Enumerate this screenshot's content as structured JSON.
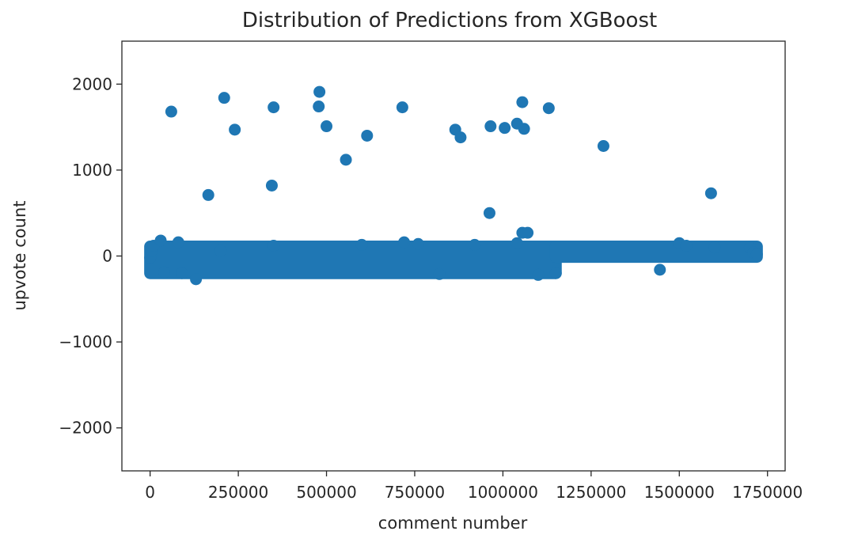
{
  "chart_data": {
    "type": "scatter",
    "title": "Distribution of Predictions from XGBoost",
    "xlabel": "comment number",
    "ylabel": "upvote count",
    "xlim": [
      -80000,
      1800000
    ],
    "ylim": [
      -2500,
      2500
    ],
    "xticks": [
      0,
      250000,
      500000,
      750000,
      1000000,
      1250000,
      1500000,
      1750000
    ],
    "xtick_labels": [
      "0",
      "250000",
      "500000",
      "750000",
      "1000000",
      "1250000",
      "1500000",
      "1750000"
    ],
    "yticks": [
      -2000,
      -1000,
      0,
      1000,
      2000
    ],
    "ytick_labels": [
      "−2000",
      "−1000",
      "0",
      "1000",
      "2000"
    ],
    "grid": false,
    "marker_color": "#1f77b4",
    "band_dense": [
      {
        "x_start": 0,
        "x_end": 1150000,
        "y_low": -200,
        "y_high": 110
      },
      {
        "x_start": 1150000,
        "x_end": 1720000,
        "y_low": -10,
        "y_high": 110
      }
    ],
    "series": [
      {
        "name": "",
        "points": [
          [
            60000,
            1680
          ],
          [
            210000,
            1840
          ],
          [
            240000,
            1470
          ],
          [
            165000,
            710
          ],
          [
            350000,
            1730
          ],
          [
            345000,
            820
          ],
          [
            480000,
            1910
          ],
          [
            478000,
            1740
          ],
          [
            500000,
            1510
          ],
          [
            555000,
            1120
          ],
          [
            615000,
            1400
          ],
          [
            715000,
            1730
          ],
          [
            865000,
            1470
          ],
          [
            880000,
            1380
          ],
          [
            965000,
            1510
          ],
          [
            1005000,
            1490
          ],
          [
            962000,
            500
          ],
          [
            1040000,
            1540
          ],
          [
            1055000,
            1790
          ],
          [
            1060000,
            1480
          ],
          [
            1130000,
            1720
          ],
          [
            1285000,
            1280
          ],
          [
            1590000,
            730
          ],
          [
            1055000,
            270
          ],
          [
            1070000,
            270
          ],
          [
            130000,
            -270
          ],
          [
            1445000,
            -160
          ],
          [
            1150000,
            -200
          ],
          [
            0,
            -20
          ],
          [
            5000,
            60
          ],
          [
            10000,
            120
          ],
          [
            30000,
            180
          ],
          [
            40000,
            -190
          ],
          [
            80000,
            160
          ],
          [
            90000,
            -200
          ],
          [
            200000,
            60
          ],
          [
            350000,
            120
          ],
          [
            600000,
            130
          ],
          [
            720000,
            160
          ],
          [
            760000,
            140
          ],
          [
            820000,
            -210
          ],
          [
            920000,
            130
          ],
          [
            1040000,
            150
          ],
          [
            1100000,
            -220
          ],
          [
            1500000,
            150
          ],
          [
            1520000,
            120
          ],
          [
            1600000,
            100
          ],
          [
            1700000,
            100
          ],
          [
            1710000,
            40
          ],
          [
            1720000,
            20
          ]
        ]
      }
    ]
  }
}
